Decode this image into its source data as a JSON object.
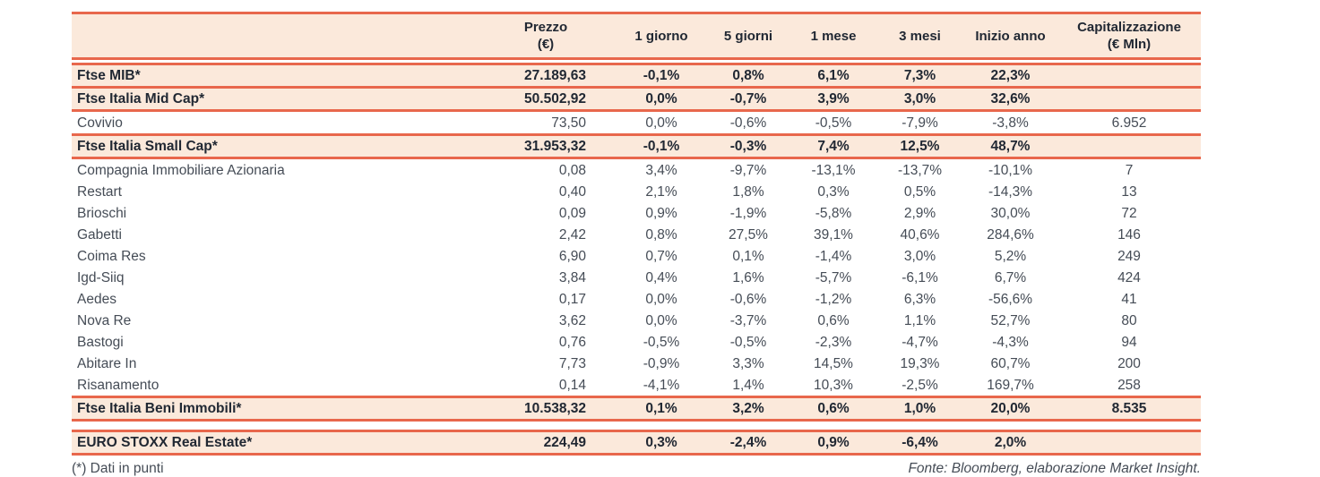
{
  "colors": {
    "accent": "#E8674C",
    "highlight_bg": "#FBE9DB",
    "text_dark": "#212833",
    "text_body": "#454C56"
  },
  "table": {
    "columns": [
      {
        "label": "",
        "sub": ""
      },
      {
        "label": "Prezzo",
        "sub": "(€)"
      },
      {
        "label": "1 giorno",
        "sub": ""
      },
      {
        "label": "5 giorni",
        "sub": ""
      },
      {
        "label": "1 mese",
        "sub": ""
      },
      {
        "label": "3 mesi",
        "sub": ""
      },
      {
        "label": "Inizio anno",
        "sub": ""
      },
      {
        "label": "Capitalizzazione",
        "sub": "(€ Mln)"
      }
    ],
    "rows": [
      {
        "name": "Ftse MIB*",
        "type": "index",
        "top_border": true,
        "gap_before": false,
        "values": [
          "27.189,63",
          "-0,1%",
          "0,8%",
          "6,1%",
          "7,3%",
          "22,3%",
          ""
        ]
      },
      {
        "name": "Ftse Italia Mid Cap*",
        "type": "index",
        "top_border": false,
        "gap_before": false,
        "values": [
          "50.502,92",
          "0,0%",
          "-0,7%",
          "3,9%",
          "3,0%",
          "32,6%",
          ""
        ]
      },
      {
        "name": "Covivio",
        "type": "stock",
        "top_border": false,
        "gap_before": false,
        "values": [
          "73,50",
          "0,0%",
          "-0,6%",
          "-0,5%",
          "-7,9%",
          "-3,8%",
          "6.952"
        ]
      },
      {
        "name": "Ftse Italia Small Cap*",
        "type": "index",
        "top_border": true,
        "gap_before": false,
        "values": [
          "31.953,32",
          "-0,1%",
          "-0,3%",
          "7,4%",
          "12,5%",
          "48,7%",
          ""
        ]
      },
      {
        "name": "Compagnia Immobiliare Azionaria",
        "type": "stock",
        "top_border": false,
        "gap_before": false,
        "values": [
          "0,08",
          "3,4%",
          "-9,7%",
          "-13,1%",
          "-13,7%",
          "-10,1%",
          "7"
        ]
      },
      {
        "name": "Restart",
        "type": "stock",
        "top_border": false,
        "gap_before": false,
        "values": [
          "0,40",
          "2,1%",
          "1,8%",
          "0,3%",
          "0,5%",
          "-14,3%",
          "13"
        ]
      },
      {
        "name": "Brioschi",
        "type": "stock",
        "top_border": false,
        "gap_before": false,
        "values": [
          "0,09",
          "0,9%",
          "-1,9%",
          "-5,8%",
          "2,9%",
          "30,0%",
          "72"
        ]
      },
      {
        "name": "Gabetti",
        "type": "stock",
        "top_border": false,
        "gap_before": false,
        "values": [
          "2,42",
          "0,8%",
          "27,5%",
          "39,1%",
          "40,6%",
          "284,6%",
          "146"
        ]
      },
      {
        "name": "Coima Res",
        "type": "stock",
        "top_border": false,
        "gap_before": false,
        "values": [
          "6,90",
          "0,7%",
          "0,1%",
          "-1,4%",
          "3,0%",
          "5,2%",
          "249"
        ]
      },
      {
        "name": "Igd-Siiq",
        "type": "stock",
        "top_border": false,
        "gap_before": false,
        "values": [
          "3,84",
          "0,4%",
          "1,6%",
          "-5,7%",
          "-6,1%",
          "6,7%",
          "424"
        ]
      },
      {
        "name": "Aedes",
        "type": "stock",
        "top_border": false,
        "gap_before": false,
        "values": [
          "0,17",
          "0,0%",
          "-0,6%",
          "-1,2%",
          "6,3%",
          "-56,6%",
          "41"
        ]
      },
      {
        "name": "Nova Re",
        "type": "stock",
        "top_border": false,
        "gap_before": false,
        "values": [
          "3,62",
          "0,0%",
          "-3,7%",
          "0,6%",
          "1,1%",
          "52,7%",
          "80"
        ]
      },
      {
        "name": "Bastogi",
        "type": "stock",
        "top_border": false,
        "gap_before": false,
        "values": [
          "0,76",
          "-0,5%",
          "-0,5%",
          "-2,3%",
          "-4,7%",
          "-4,3%",
          "94"
        ]
      },
      {
        "name": "Abitare In",
        "type": "stock",
        "top_border": false,
        "gap_before": false,
        "values": [
          "7,73",
          "-0,9%",
          "3,3%",
          "14,5%",
          "19,3%",
          "60,7%",
          "200"
        ]
      },
      {
        "name": "Risanamento",
        "type": "stock",
        "top_border": false,
        "gap_before": false,
        "values": [
          "0,14",
          "-4,1%",
          "1,4%",
          "10,3%",
          "-2,5%",
          "169,7%",
          "258"
        ]
      },
      {
        "name": "Ftse Italia Beni Immobili*",
        "type": "index",
        "top_border": true,
        "gap_before": false,
        "values": [
          "10.538,32",
          "0,1%",
          "3,2%",
          "0,6%",
          "1,0%",
          "20,0%",
          "8.535"
        ]
      },
      {
        "name": "EURO STOXX Real Estate*",
        "type": "index",
        "top_border": true,
        "gap_before": true,
        "values": [
          "224,49",
          "0,3%",
          "-2,4%",
          "0,9%",
          "-6,4%",
          "2,0%",
          ""
        ]
      }
    ]
  },
  "footer": {
    "note": "(*) Dati in punti",
    "source": "Fonte: Bloomberg, elaborazione Market Insight."
  }
}
